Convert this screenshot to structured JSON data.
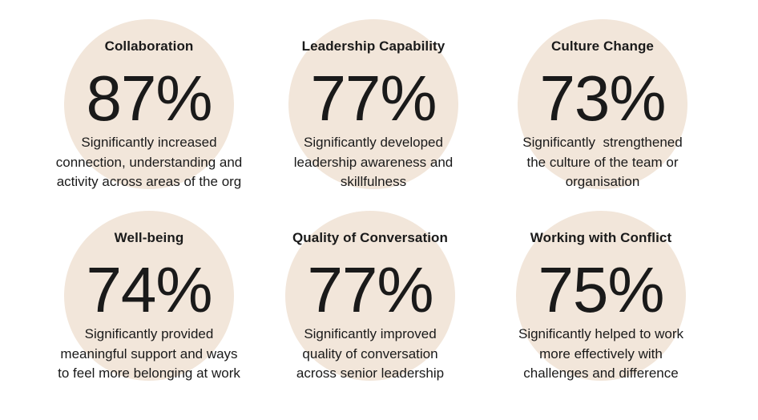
{
  "colors": {
    "circle": "#f2e6da",
    "text": "#1a1a1a"
  },
  "stats": [
    {
      "title": "Collaboration",
      "value": "87%",
      "desc_lines": [
        "Significantly increased",
        "connection, understanding and",
        "activity across areas of the org"
      ]
    },
    {
      "title": "Leadership Capability",
      "value": "77%",
      "desc_lines": [
        "Significantly developed",
        "leadership awareness and",
        "skillfulness"
      ]
    },
    {
      "title": "Culture Change",
      "value": "73%",
      "desc_lines": [
        "Significantly  strengthened",
        "the culture of the team or",
        "organisation"
      ]
    },
    {
      "title": "Well-being",
      "value": "74%",
      "desc_lines": [
        "Significantly provided",
        "meaningful support and ways",
        "to feel more belonging at work"
      ]
    },
    {
      "title": "Quality of Conversation",
      "value": "77%",
      "desc_lines": [
        "Significantly improved",
        "quality of conversation",
        "across senior leadership"
      ]
    },
    {
      "title": "Working with Conflict",
      "value": "75%",
      "desc_lines": [
        "Significantly helped to work",
        "more effectively with",
        "challenges and difference"
      ]
    }
  ]
}
